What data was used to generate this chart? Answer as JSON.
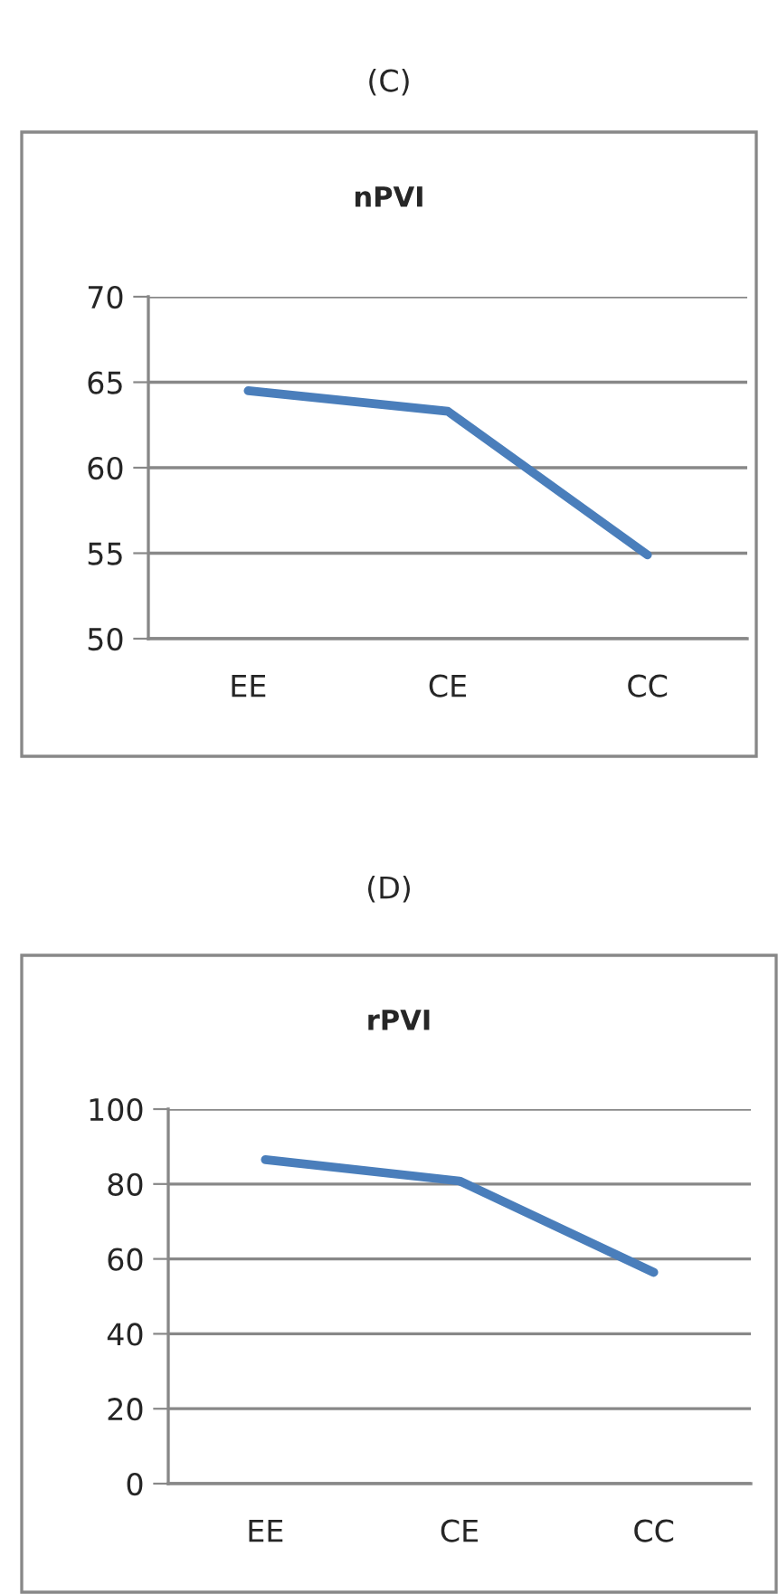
{
  "chart_data": [
    {
      "type": "line",
      "title": "nPVI",
      "annotations": [
        "(C)"
      ],
      "categories": [
        "EE",
        "CE",
        "CC"
      ],
      "series": [
        {
          "color": "#4a7ebb",
          "values": [
            64.5,
            63.3,
            54.9
          ]
        }
      ],
      "ylim": [
        50,
        70
      ],
      "yticks": [
        50,
        55,
        60,
        65,
        70
      ],
      "grid": "y",
      "marker": "none",
      "line_style": "solid"
    },
    {
      "type": "line",
      "title": "rPVI",
      "annotations": [
        "(D)"
      ],
      "categories": [
        "EE",
        "CE",
        "CC"
      ],
      "series": [
        {
          "color": "#4a7ebb",
          "values": [
            86.5,
            80.8,
            56.4
          ]
        }
      ],
      "ylim": [
        0,
        100
      ],
      "yticks": [
        0,
        20,
        40,
        60,
        80,
        100
      ],
      "grid": "y",
      "marker": "none",
      "line_style": "solid"
    }
  ]
}
